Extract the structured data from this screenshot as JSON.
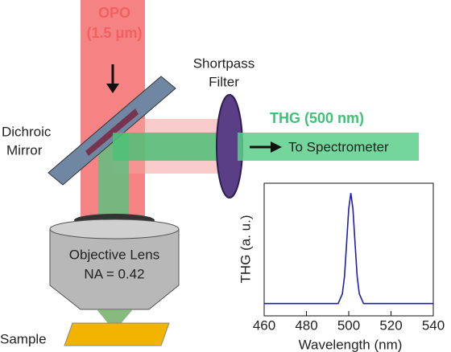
{
  "labels": {
    "source": "OPO",
    "wavelength": "(1.5 μm)",
    "filter": [
      "Shortpass",
      "Filter"
    ],
    "signal": "THG (500 nm)",
    "output": "To Spectrometer",
    "mirror": [
      "Dichroic",
      "Mirror"
    ],
    "lens": "Objective Lens",
    "aperture": "NA = 0.42",
    "sample": "Sample"
  },
  "chart_data": {
    "type": "line",
    "x_label": "Wavelength (nm)",
    "y_label": "THG (a. u.)",
    "x": [
      460,
      490,
      495,
      497,
      498,
      499,
      500,
      501,
      502,
      503,
      504,
      505,
      507,
      510,
      540
    ],
    "values": [
      0.1,
      0.1,
      0.1,
      0.18,
      0.32,
      0.59,
      0.87,
      1.0,
      0.87,
      0.59,
      0.32,
      0.18,
      0.1,
      0.1,
      0.1
    ],
    "color": "#1f1fb4",
    "xlim": [
      460,
      540
    ],
    "xticks": [
      460,
      480,
      500,
      520,
      540
    ],
    "ylim": [
      0,
      1.08
    ]
  }
}
